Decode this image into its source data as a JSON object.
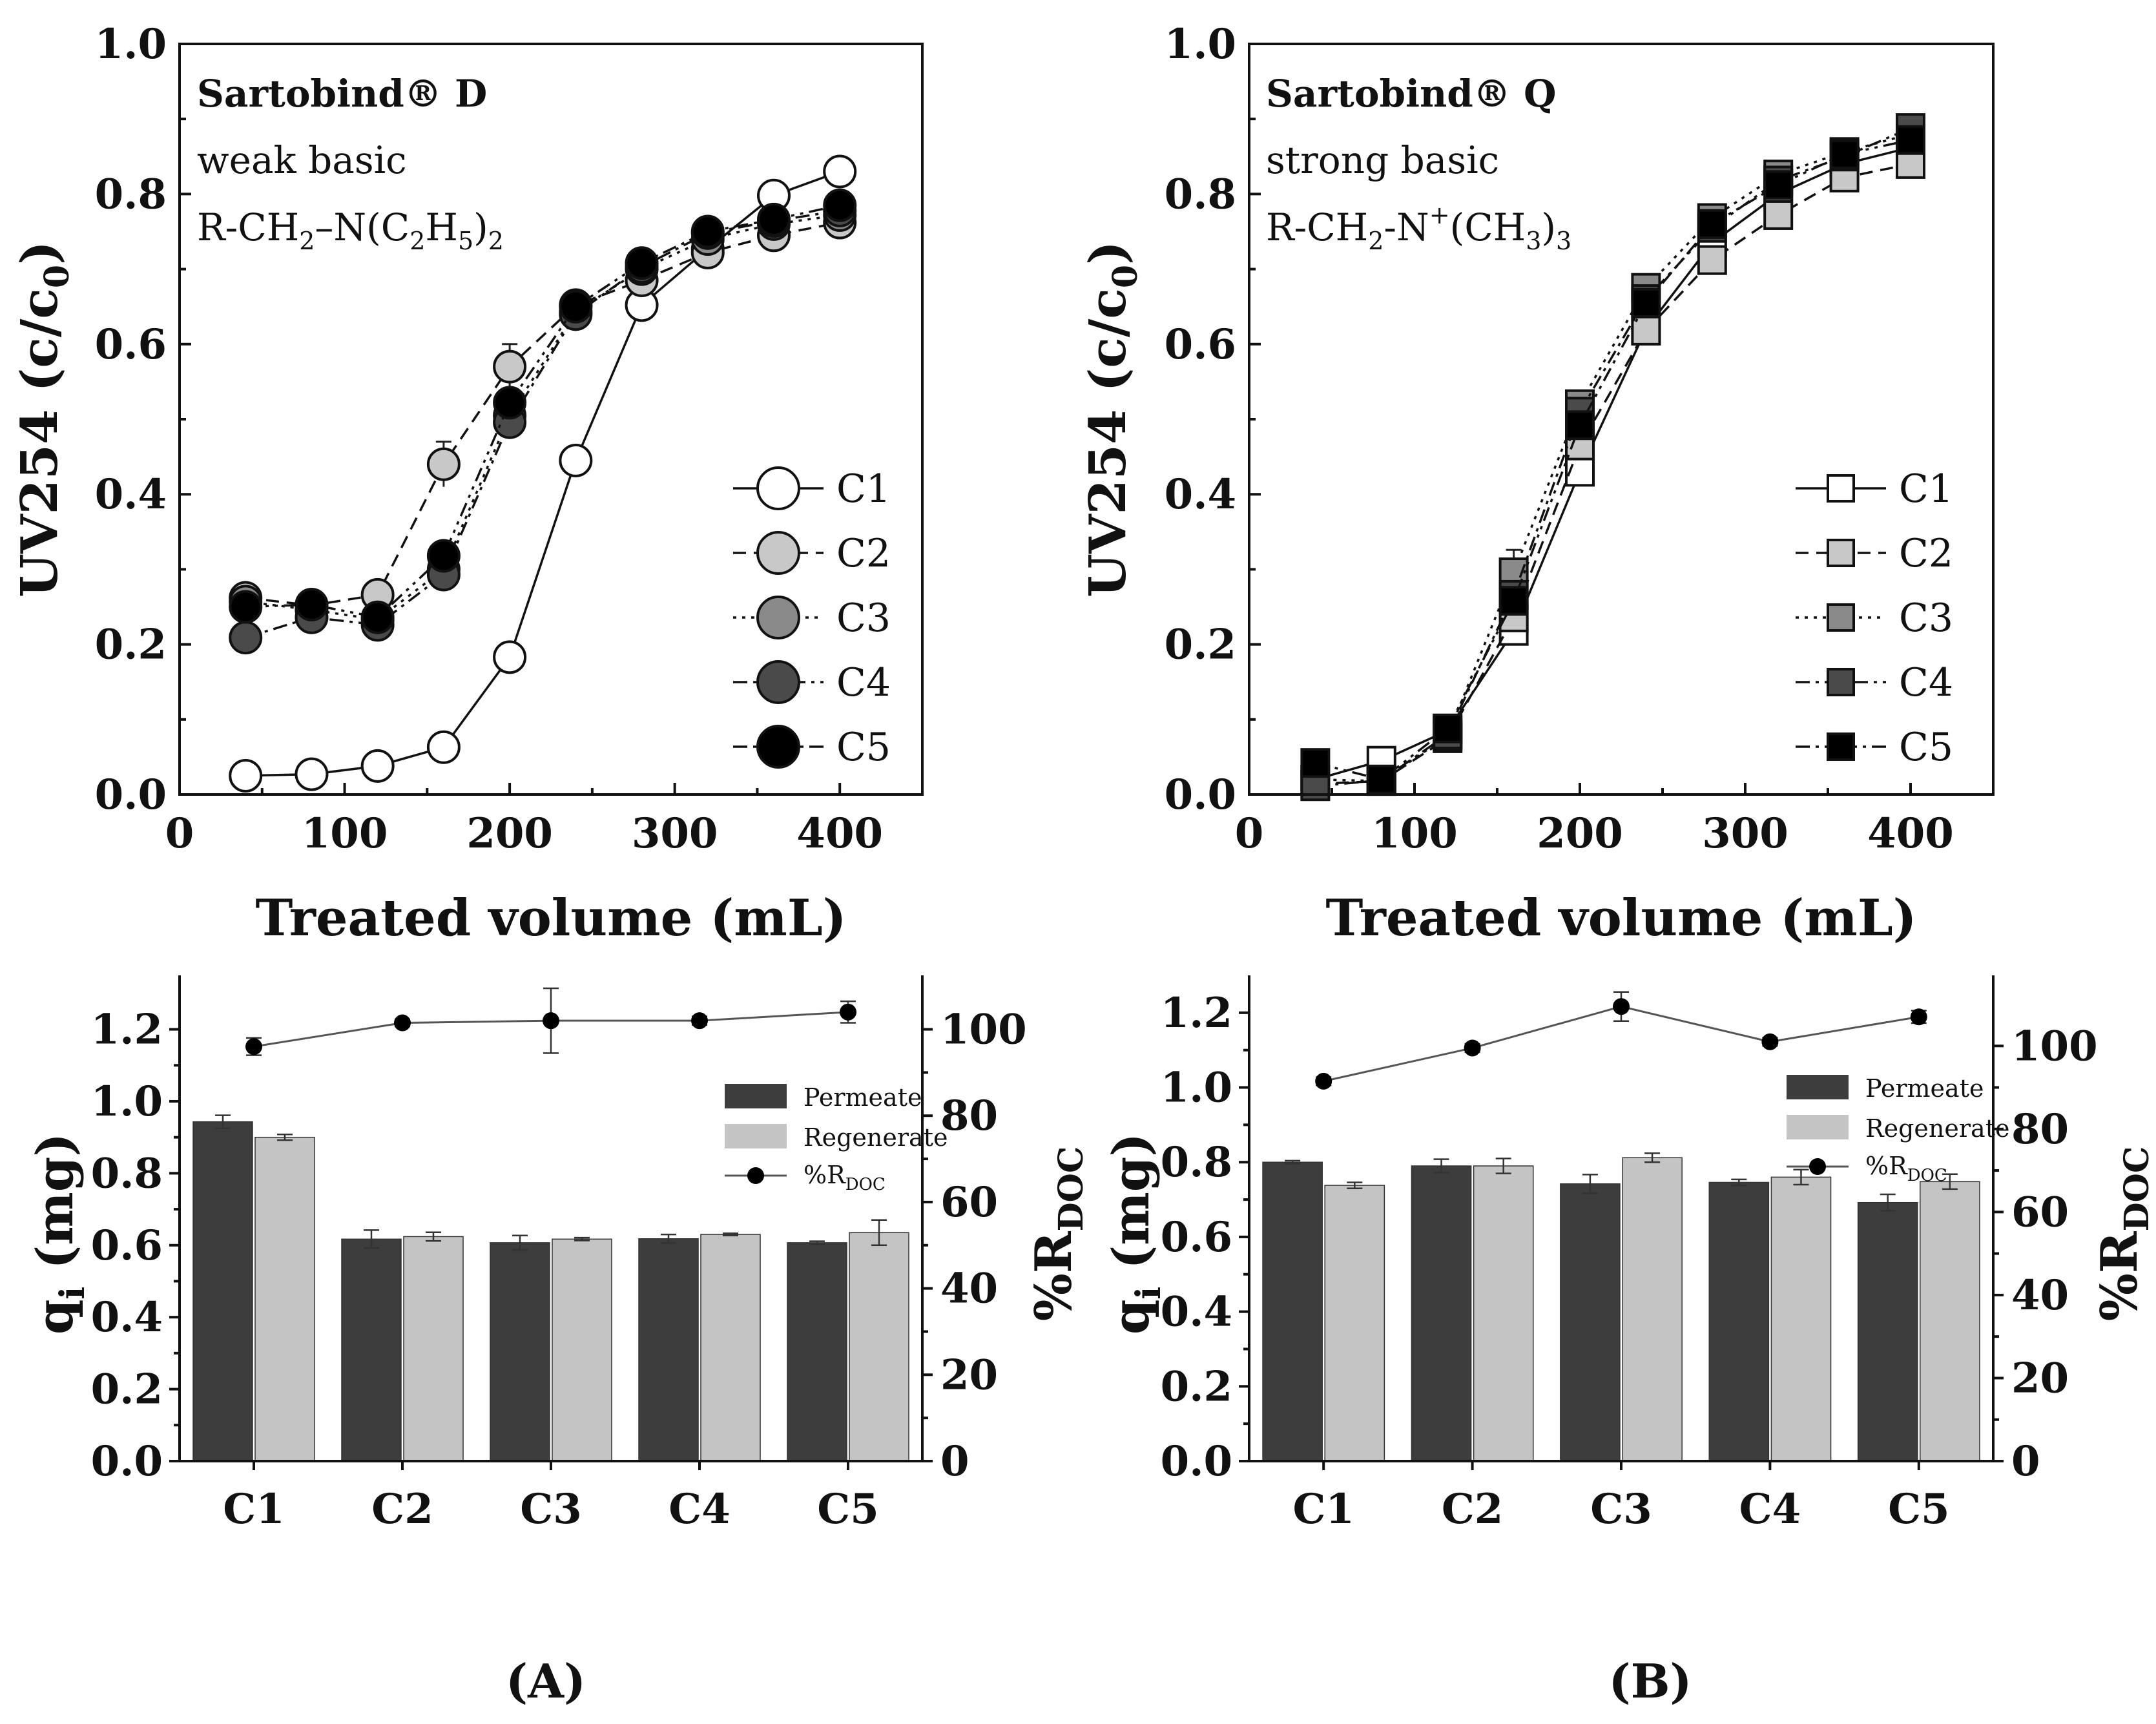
{
  "panels": {
    "A": "A",
    "B": "B"
  },
  "annotations": {
    "D_title": "Sartobind® D",
    "D_type": "weak basic",
    "D_formula_a": "R-CH",
    "D_formula_s1": "2",
    "D_formula_b": "–N(C",
    "D_formula_s2": "2",
    "D_formula_c": "H",
    "D_formula_s3": "5",
    "D_formula_d": ")",
    "D_formula_s4": "2",
    "Q_title": "Sartobind® Q",
    "Q_type": "strong basic",
    "Q_formula_a": "R-CH",
    "Q_formula_s1": "2",
    "Q_formula_b": "-N",
    "Q_formula_sup": "+",
    "Q_formula_c": "(CH",
    "Q_formula_s2": "3",
    "Q_formula_d": ")",
    "Q_formula_s3": "3"
  },
  "labels": {
    "uv_ylabel_main": "UV254 (c/c",
    "uv_ylabel_sub": "0",
    "uv_ylabel_end": ")",
    "xlabel": "Treated volume (mL)",
    "q_ylabel_main": "q",
    "q_ylabel_sub": "i",
    "q_ylabel_end": " (mg)",
    "r_ylabel_main": "%R",
    "r_ylabel_sub": "DOC",
    "legend_permeate": "Permeate",
    "legend_regenerate": "Regenerate",
    "legend_rdoc_main": "%R",
    "legend_rdoc_sub": "DOC"
  },
  "colors": {
    "C1": "#ffffff",
    "C2": "#c8c8c8",
    "C3": "#8a8a8a",
    "C4": "#4a4a4a",
    "C5": "#000000",
    "permeate": "#3d3d3d",
    "regenerate": "#c4c4c4"
  },
  "chart_data": [
    {
      "id": "uvD",
      "type": "line",
      "title": "Sartobind® D",
      "xlabel": "Treated volume (mL)",
      "ylabel": "UV254 (c/c0)",
      "xlim": [
        0,
        450
      ],
      "ylim": [
        0,
        1.0
      ],
      "xticks": [
        "0",
        "100",
        "200",
        "300",
        "400"
      ],
      "yticks": [
        "0.0",
        "0.2",
        "0.4",
        "0.6",
        "0.8",
        "1.0"
      ],
      "marker": "circle",
      "x": [
        40,
        80,
        120,
        160,
        200,
        240,
        280,
        320,
        360,
        400
      ],
      "series": [
        {
          "name": "C1",
          "values": [
            0.025,
            0.027,
            0.038,
            0.063,
            0.183,
            0.445,
            0.652,
            0.727,
            0.798,
            0.83
          ]
        },
        {
          "name": "C2",
          "values": [
            0.262,
            0.252,
            0.266,
            0.44,
            0.57,
            0.652,
            0.685,
            0.722,
            0.745,
            0.762
          ],
          "err": [
            0,
            0,
            0,
            0.03,
            0.03,
            0,
            0,
            0,
            0,
            0
          ]
        },
        {
          "name": "C3",
          "values": [
            0.257,
            0.246,
            0.233,
            0.3,
            0.505,
            0.643,
            0.7,
            0.74,
            0.76,
            0.772
          ]
        },
        {
          "name": "C4",
          "values": [
            0.209,
            0.236,
            0.226,
            0.293,
            0.496,
            0.64,
            0.703,
            0.748,
            0.764,
            0.778
          ]
        },
        {
          "name": "C5",
          "values": [
            0.25,
            0.253,
            0.236,
            0.318,
            0.522,
            0.65,
            0.708,
            0.75,
            0.766,
            0.785
          ]
        }
      ]
    },
    {
      "id": "uvQ",
      "type": "line",
      "title": "Sartobind® Q",
      "xlabel": "Treated volume (mL)",
      "ylabel": "UV254 (c/c0)",
      "xlim": [
        0,
        450
      ],
      "ylim": [
        0,
        1.0
      ],
      "xticks": [
        "0",
        "100",
        "200",
        "300",
        "400"
      ],
      "yticks": [
        "0.0",
        "0.2",
        "0.4",
        "0.6",
        "0.8",
        "1.0"
      ],
      "marker": "square",
      "x": [
        40,
        80,
        120,
        160,
        200,
        240,
        280,
        320,
        360,
        400
      ],
      "series": [
        {
          "name": "C1",
          "values": [
            0.02,
            0.045,
            0.085,
            0.218,
            0.43,
            0.62,
            0.735,
            0.8,
            0.84,
            0.862
          ]
        },
        {
          "name": "C2",
          "values": [
            0.014,
            0.018,
            0.075,
            0.236,
            0.465,
            0.618,
            0.712,
            0.772,
            0.822,
            0.84
          ]
        },
        {
          "name": "C3",
          "values": [
            0.02,
            0.018,
            0.078,
            0.296,
            0.52,
            0.675,
            0.768,
            0.826,
            0.856,
            0.88
          ],
          "err": [
            0,
            0,
            0,
            0.03,
            0,
            0,
            0,
            0,
            0,
            0
          ]
        },
        {
          "name": "C4",
          "values": [
            0.011,
            0.019,
            0.08,
            0.266,
            0.51,
            0.66,
            0.755,
            0.818,
            0.85,
            0.888
          ]
        },
        {
          "name": "C5",
          "values": [
            0.042,
            0.02,
            0.088,
            0.258,
            0.492,
            0.655,
            0.76,
            0.812,
            0.853,
            0.872
          ]
        }
      ]
    },
    {
      "id": "barA",
      "type": "bar",
      "categories": [
        "C1",
        "C2",
        "C3",
        "C4",
        "C5"
      ],
      "ylabel": "qi (mg)",
      "y2label": "%RDOC",
      "ylim": [
        0,
        1.35
      ],
      "y2lim": [
        0,
        112.5
      ],
      "yticks": [
        "0.0",
        "0.2",
        "0.4",
        "0.6",
        "0.8",
        "1.0",
        "1.2"
      ],
      "y2ticks": [
        "0",
        "20",
        "40",
        "60",
        "80",
        "100"
      ],
      "series": [
        {
          "name": "Permeate",
          "values": [
            0.943,
            0.617,
            0.607,
            0.618,
            0.607
          ],
          "err": [
            0.018,
            0.025,
            0.02,
            0.012,
            0.004
          ]
        },
        {
          "name": "Regenerate",
          "values": [
            0.9,
            0.624,
            0.617,
            0.63,
            0.635
          ],
          "err": [
            0.008,
            0.012,
            0.004,
            0.003,
            0.035
          ]
        },
        {
          "name": "%RDOC",
          "type": "line",
          "values": [
            96.0,
            101.5,
            102.0,
            102.0,
            104.0
          ],
          "err": [
            2.0,
            0.8,
            7.5,
            1.0,
            2.5
          ]
        }
      ]
    },
    {
      "id": "barB",
      "type": "bar",
      "categories": [
        "C1",
        "C2",
        "C3",
        "C4",
        "C5"
      ],
      "ylabel": "qi (mg)",
      "y2label": "%RDOC",
      "ylim": [
        0,
        1.3
      ],
      "y2lim": [
        0,
        117
      ],
      "yticks": [
        "0.0",
        "0.2",
        "0.4",
        "0.6",
        "0.8",
        "1.0",
        "1.2"
      ],
      "y2ticks": [
        "0",
        "20",
        "40",
        "60",
        "80",
        "100"
      ],
      "series": [
        {
          "name": "Permeate",
          "values": [
            0.8,
            0.79,
            0.742,
            0.746,
            0.692
          ],
          "err": [
            0.004,
            0.018,
            0.025,
            0.008,
            0.022
          ]
        },
        {
          "name": "Regenerate",
          "values": [
            0.738,
            0.79,
            0.812,
            0.76,
            0.748
          ],
          "err": [
            0.008,
            0.02,
            0.012,
            0.02,
            0.02
          ]
        },
        {
          "name": "%RDOC",
          "type": "line",
          "values": [
            91.5,
            99.5,
            109.5,
            101.0,
            107.0
          ],
          "err": [
            1.0,
            1.0,
            3.5,
            1.0,
            1.5
          ]
        }
      ]
    }
  ]
}
